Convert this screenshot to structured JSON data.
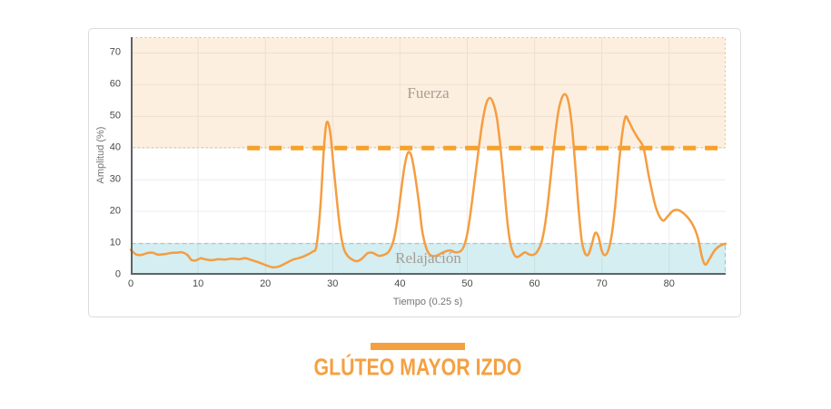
{
  "chart_data": {
    "type": "line",
    "xlabel": "Tiempo (0.25 s)",
    "ylabel": "Amplitud (%)",
    "xlim": [
      0,
      88.4
    ],
    "ylim": [
      0,
      75
    ],
    "x_ticks": [
      0,
      10,
      20,
      30,
      40,
      50,
      60,
      70,
      80
    ],
    "y_ticks": [
      0,
      10,
      20,
      30,
      40,
      50,
      60,
      70
    ],
    "grid": true,
    "legend": "none",
    "zones": [
      {
        "label": "Fuerza",
        "from": 40,
        "to": 75,
        "fill": "rgba(244,166,77,0.18)",
        "border": "#F0B478",
        "border_dash": "2 3"
      },
      {
        "label": "Relajación",
        "from": 0,
        "to": 10,
        "fill": "rgba(100,195,205,0.28)",
        "border": "#7FCDD5",
        "border_dash": "5 3"
      }
    ],
    "threshold": {
      "y": 40,
      "x_start": 17.3,
      "color": "#F5A12B"
    },
    "series": [
      {
        "color": "#F59D41",
        "points": [
          [
            0,
            7.9
          ],
          [
            0.8,
            6.4
          ],
          [
            1.6,
            6.3
          ],
          [
            2.4,
            6.8
          ],
          [
            3.2,
            7.0
          ],
          [
            4,
            6.4
          ],
          [
            5,
            6.5
          ],
          [
            6,
            6.9
          ],
          [
            7,
            7.0
          ],
          [
            7.6,
            7.1
          ],
          [
            8.4,
            6.3
          ],
          [
            9,
            4.7
          ],
          [
            9.6,
            4.5
          ],
          [
            10.4,
            5.2
          ],
          [
            11,
            4.9
          ],
          [
            12,
            4.6
          ],
          [
            13,
            4.9
          ],
          [
            14,
            4.8
          ],
          [
            15,
            5.1
          ],
          [
            16,
            4.9
          ],
          [
            17,
            5.2
          ],
          [
            18,
            4.6
          ],
          [
            19,
            3.9
          ],
          [
            20,
            3.1
          ],
          [
            21,
            2.4
          ],
          [
            22,
            2.6
          ],
          [
            23,
            3.6
          ],
          [
            24,
            4.7
          ],
          [
            25,
            5.3
          ],
          [
            26,
            6.1
          ],
          [
            27,
            7.3
          ],
          [
            27.6,
            9.2
          ],
          [
            28.2,
            22
          ],
          [
            28.7,
            40
          ],
          [
            29.1,
            48
          ],
          [
            29.6,
            45.5
          ],
          [
            30.1,
            35
          ],
          [
            30.7,
            22
          ],
          [
            31.2,
            13
          ],
          [
            31.7,
            8
          ],
          [
            32.3,
            5.8
          ],
          [
            33,
            4.7
          ],
          [
            33.6,
            4.3
          ],
          [
            34.3,
            5
          ],
          [
            35.2,
            6.8
          ],
          [
            36,
            6.9
          ],
          [
            36.8,
            6.0
          ],
          [
            37.5,
            6.2
          ],
          [
            38.3,
            7.2
          ],
          [
            39,
            10.5
          ],
          [
            39.6,
            17
          ],
          [
            40.2,
            27
          ],
          [
            40.7,
            34.5
          ],
          [
            41.2,
            38.6
          ],
          [
            41.7,
            37.5
          ],
          [
            42.2,
            32
          ],
          [
            42.8,
            23
          ],
          [
            43.3,
            14
          ],
          [
            43.9,
            8.5
          ],
          [
            44.5,
            6.2
          ],
          [
            45.2,
            5.9
          ],
          [
            46,
            6.6
          ],
          [
            46.8,
            7.4
          ],
          [
            47.5,
            7.7
          ],
          [
            48.2,
            7.1
          ],
          [
            48.9,
            7.3
          ],
          [
            49.5,
            9
          ],
          [
            50.1,
            14
          ],
          [
            50.7,
            23
          ],
          [
            51.3,
            33
          ],
          [
            51.9,
            43
          ],
          [
            52.4,
            50
          ],
          [
            52.9,
            54.5
          ],
          [
            53.4,
            55.8
          ],
          [
            53.9,
            54
          ],
          [
            54.4,
            49.5
          ],
          [
            54.9,
            41
          ],
          [
            55.4,
            30
          ],
          [
            55.9,
            18
          ],
          [
            56.4,
            10
          ],
          [
            56.9,
            6.7
          ],
          [
            57.4,
            5.6
          ],
          [
            58,
            6.3
          ],
          [
            58.6,
            7.1
          ],
          [
            59.2,
            6.4
          ],
          [
            59.8,
            6.3
          ],
          [
            60.4,
            7.3
          ],
          [
            61,
            10
          ],
          [
            61.5,
            15
          ],
          [
            62,
            23
          ],
          [
            62.5,
            33
          ],
          [
            63,
            43
          ],
          [
            63.5,
            51
          ],
          [
            64,
            55.5
          ],
          [
            64.5,
            57
          ],
          [
            65,
            55
          ],
          [
            65.5,
            48
          ],
          [
            66,
            36
          ],
          [
            66.5,
            22
          ],
          [
            67,
            11
          ],
          [
            67.5,
            6.8
          ],
          [
            68,
            6.4
          ],
          [
            68.5,
            9.5
          ],
          [
            69,
            13.2
          ],
          [
            69.5,
            12
          ],
          [
            70,
            7.5
          ],
          [
            70.5,
            6.2
          ],
          [
            71,
            8
          ],
          [
            71.5,
            13
          ],
          [
            72,
            22
          ],
          [
            72.5,
            34
          ],
          [
            73,
            44
          ],
          [
            73.5,
            49.8
          ],
          [
            74,
            48.5
          ],
          [
            74.7,
            45.5
          ],
          [
            75.4,
            43
          ],
          [
            76.2,
            40
          ],
          [
            77,
            31
          ],
          [
            78,
            21.5
          ],
          [
            79,
            17.2
          ],
          [
            79.8,
            18.5
          ],
          [
            80.6,
            20.2
          ],
          [
            81.4,
            20.4
          ],
          [
            82.2,
            19.3
          ],
          [
            83,
            17.5
          ],
          [
            83.7,
            15
          ],
          [
            84.3,
            11.5
          ],
          [
            84.9,
            5.5
          ],
          [
            85.4,
            3.2
          ],
          [
            86,
            5
          ],
          [
            86.8,
            7.8
          ],
          [
            87.6,
            9.2
          ],
          [
            88.4,
            9.8
          ]
        ]
      }
    ]
  },
  "footer": {
    "title": "GLÚTEO MAYOR IZDO",
    "accent_color": "#F5A03E"
  }
}
